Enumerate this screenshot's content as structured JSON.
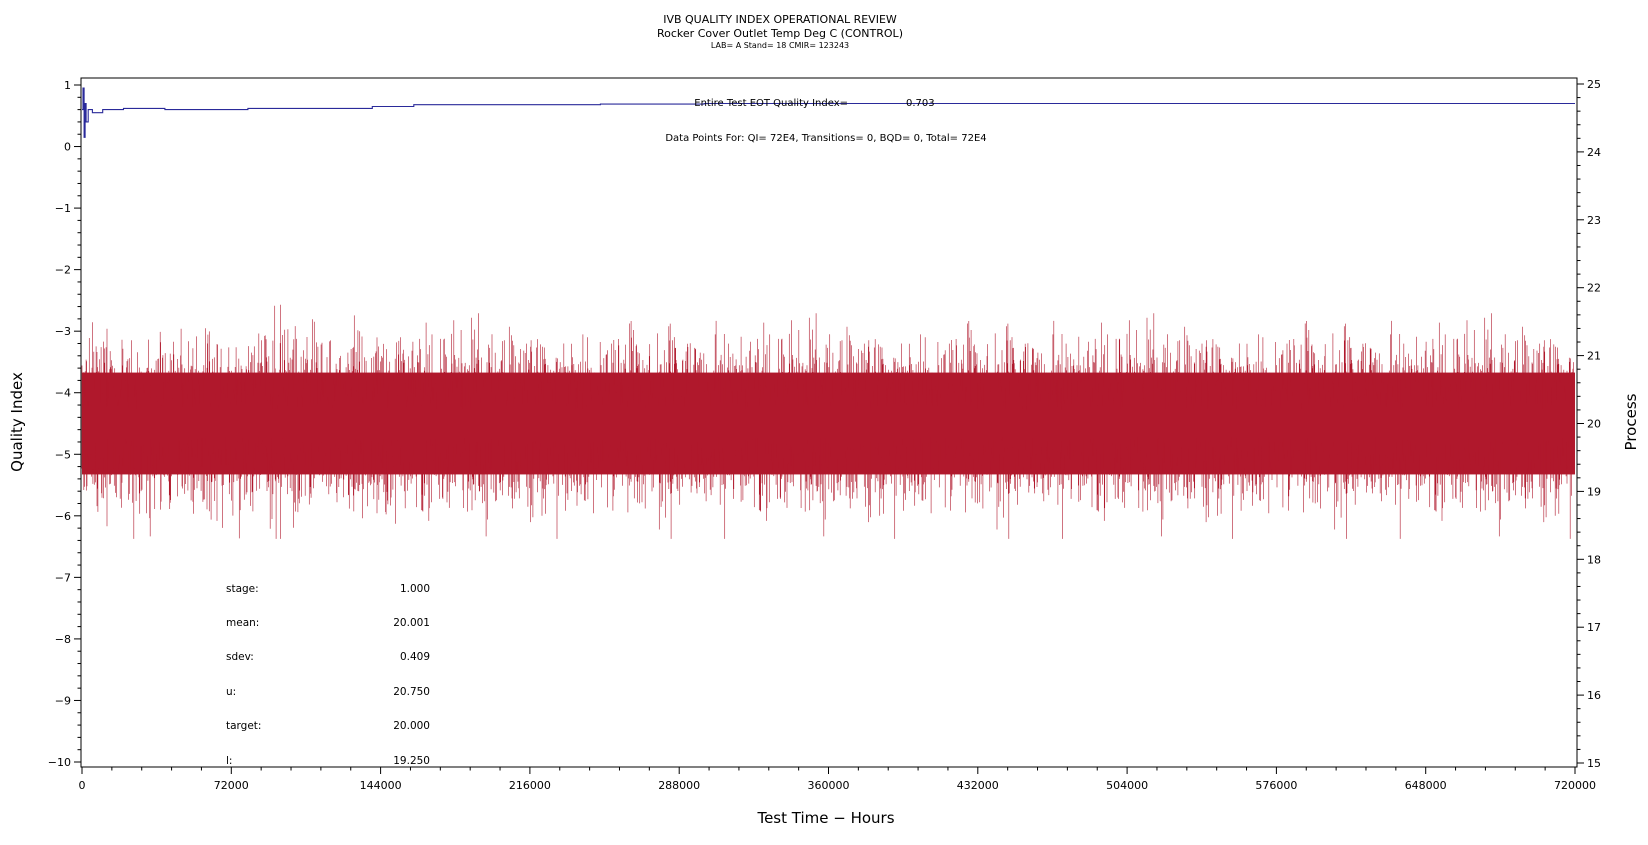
{
  "header": {
    "title": "IVB QUALITY INDEX OPERATIONAL REVIEW",
    "subtitle": "Rocker Cover Outlet Temp Deg C (CONTROL)",
    "info": "LAB= A Stand= 18 CMIR= 123243"
  },
  "annotations": {
    "qi_label": "Entire Test EOT Quality Index=",
    "qi_value": "0.703",
    "data_points": "Data Points For: QI=  72E4, Transitions=     0, BQD=     0, Total=  72E4"
  },
  "stats": [
    {
      "label": "stage:",
      "value": "1.000"
    },
    {
      "label": "mean:",
      "value": "20.001"
    },
    {
      "label": "sdev:",
      "value": "0.409"
    },
    {
      "label": "u:",
      "value": "20.750"
    },
    {
      "label": "target:",
      "value": "20.000"
    },
    {
      "label": "l:",
      "value": "19.250"
    }
  ],
  "colors": {
    "quality_index": "#2a2a9a",
    "process": "#b0182c"
  },
  "chart_data": {
    "type": "line",
    "xlabel": "Test Time − Hours",
    "ylabel": "Quality Index",
    "y2label": "Process",
    "xlim": [
      0,
      720000
    ],
    "ylim": [
      -10,
      1
    ],
    "y2lim": [
      15,
      25
    ],
    "xticks": [
      "0",
      "72000",
      "144000",
      "216000",
      "288000",
      "360000",
      "432000",
      "504000",
      "576000",
      "648000",
      "720000"
    ],
    "yticks": [
      "1",
      "0",
      "−1",
      "−2",
      "−3",
      "−4",
      "−5",
      "−6",
      "−7",
      "−8",
      "−9",
      "−10"
    ],
    "y2ticks": [
      "25",
      "24",
      "23",
      "22",
      "21",
      "20",
      "19",
      "18",
      "17",
      "16",
      "15"
    ],
    "series": [
      {
        "axis": "left",
        "x": [
          0,
          500,
          1000,
          1500,
          2000,
          3000,
          5000,
          10000,
          20000,
          40000,
          60000,
          80000,
          100000,
          140000,
          160000,
          200000,
          250000,
          300000,
          350000,
          400000,
          440000,
          500000,
          600000,
          720000
        ],
        "values": [
          0.6,
          0.95,
          0.15,
          0.7,
          0.4,
          0.6,
          0.55,
          0.6,
          0.62,
          0.6,
          0.6,
          0.62,
          0.62,
          0.65,
          0.68,
          0.68,
          0.69,
          0.7,
          0.7,
          0.7,
          0.7,
          0.7,
          0.7,
          0.7
        ]
      },
      {
        "axis": "right",
        "mean": 20.001,
        "sdev": 0.409,
        "dense_band": [
          19.25,
          20.75
        ],
        "observed_range": [
          18.3,
          21.75
        ],
        "n_points": 720000
      }
    ]
  }
}
